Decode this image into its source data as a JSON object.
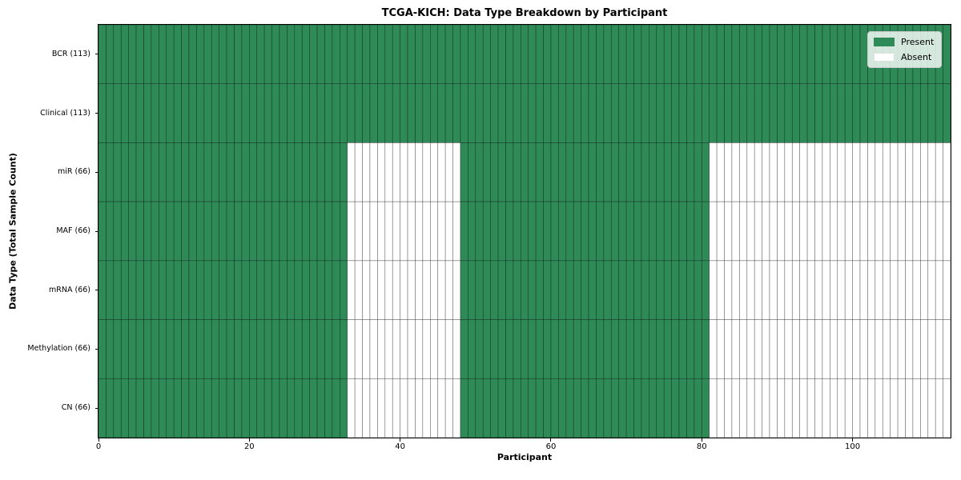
{
  "chart_data": {
    "type": "heatmap",
    "title": "TCGA-KICH: Data Type Breakdown by Participant",
    "xlabel": "Participant",
    "ylabel": "Data Type (Total Sample Count)",
    "n_participants": 113,
    "x_ticks": [
      0,
      20,
      40,
      60,
      80,
      100
    ],
    "xlim": [
      0,
      113
    ],
    "grid": true,
    "legend_position": "upper right",
    "legend": [
      {
        "label": "Present",
        "color": "#2e8b57"
      },
      {
        "label": "Absent",
        "color": "#ffffff"
      }
    ],
    "colors": {
      "present": "#2e8b57",
      "absent": "#ffffff",
      "grid_line": "rgba(0,0,0,0.5)"
    },
    "rows": [
      {
        "label": "BCR (113)",
        "name": "BCR",
        "total": 113,
        "present_segments": [
          [
            0,
            113
          ]
        ]
      },
      {
        "label": "Clinical (113)",
        "name": "Clinical",
        "total": 113,
        "present_segments": [
          [
            0,
            113
          ]
        ]
      },
      {
        "label": "miR (66)",
        "name": "miR",
        "total": 66,
        "present_segments": [
          [
            0,
            33
          ],
          [
            48,
            81
          ]
        ]
      },
      {
        "label": "MAF (66)",
        "name": "MAF",
        "total": 66,
        "present_segments": [
          [
            0,
            33
          ],
          [
            48,
            81
          ]
        ]
      },
      {
        "label": "mRNA (66)",
        "name": "mRNA",
        "total": 66,
        "present_segments": [
          [
            0,
            33
          ],
          [
            48,
            81
          ]
        ]
      },
      {
        "label": "Methylation (66)",
        "name": "Methylation",
        "total": 66,
        "present_segments": [
          [
            0,
            33
          ],
          [
            48,
            81
          ]
        ]
      },
      {
        "label": "CN (66)",
        "name": "CN",
        "total": 66,
        "present_segments": [
          [
            0,
            33
          ],
          [
            48,
            81
          ]
        ]
      }
    ]
  }
}
